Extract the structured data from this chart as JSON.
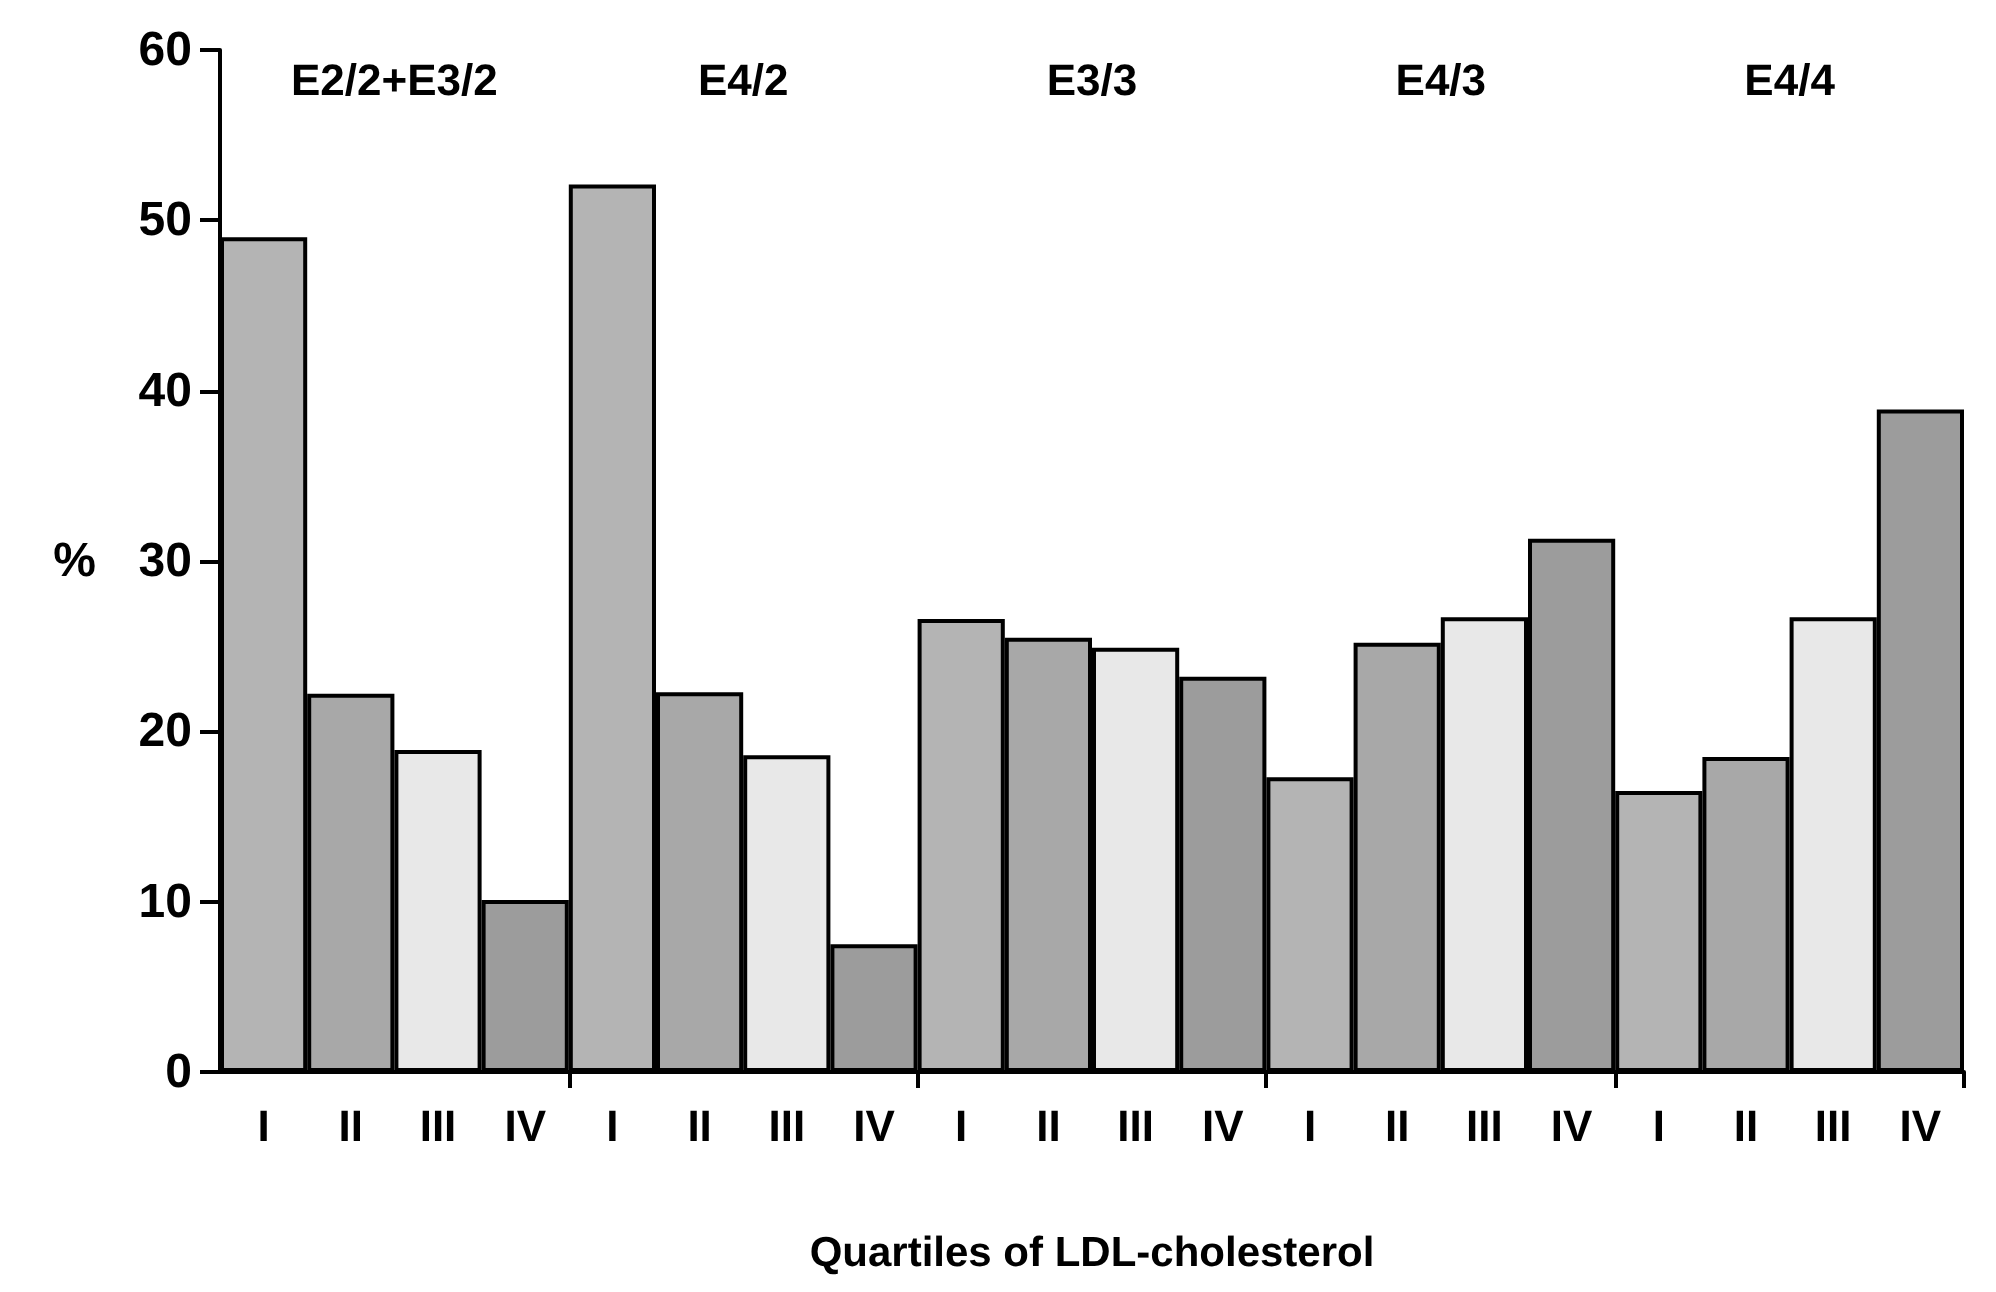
{
  "chart_data": {
    "type": "bar",
    "xlabel": "Quartiles of LDL-cholesterol",
    "ylabel": "%",
    "categories": [
      "I",
      "II",
      "III",
      "IV",
      "I",
      "II",
      "III",
      "IV",
      "I",
      "II",
      "III",
      "IV",
      "I",
      "II",
      "III",
      "IV",
      "I",
      "II",
      "III",
      "IV"
    ],
    "values": [
      49.0,
      22.2,
      18.9,
      10.1,
      52.1,
      22.3,
      18.6,
      7.5,
      26.6,
      25.5,
      24.9,
      23.2,
      17.3,
      25.2,
      26.7,
      31.3,
      16.5,
      18.5,
      26.7,
      38.9
    ],
    "colors": [
      "#b4b4b4",
      "#a8a8a8",
      "#e8e8e8",
      "#9c9c9c",
      "#b4b4b4",
      "#a8a8a8",
      "#e8e8e8",
      "#9c9c9c",
      "#b4b4b4",
      "#a8a8a8",
      "#e8e8e8",
      "#9c9c9c",
      "#b4b4b4",
      "#a8a8a8",
      "#e8e8e8",
      "#9c9c9c",
      "#b4b4b4",
      "#a8a8a8",
      "#e8e8e8",
      "#9c9c9c"
    ],
    "annotations": [
      "E2/2+E3/2",
      "E4/2",
      "E3/3",
      "E4/3",
      "E4/4"
    ],
    "ylim": [
      0,
      60
    ],
    "yticks": [
      0,
      10,
      20,
      30,
      40,
      50,
      60
    ]
  }
}
